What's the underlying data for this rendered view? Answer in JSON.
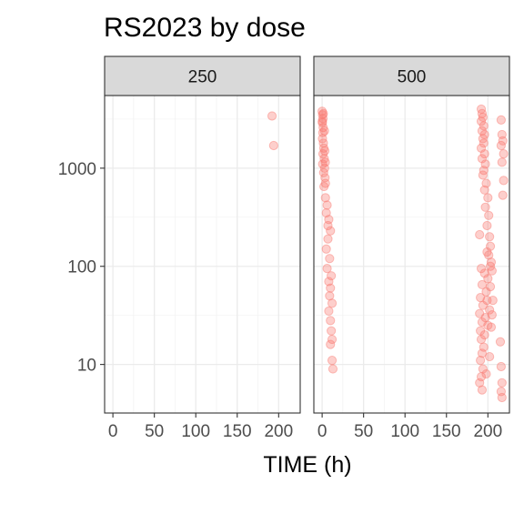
{
  "chart_data": {
    "type": "scatter",
    "title": "RS2023 by dose",
    "xlabel": "TIME (h)",
    "ylabel": "",
    "y_scale": "log10",
    "ylim": [
      3.2,
      5500
    ],
    "xlim": [
      -10,
      226
    ],
    "x_ticks": [
      0,
      50,
      100,
      150,
      200
    ],
    "y_ticks": [
      10,
      100,
      1000
    ],
    "y_tick_labels": [
      "10",
      "100",
      "1000"
    ],
    "grid": true,
    "point_color": "#F8766D",
    "panels": [
      {
        "label": "250",
        "points": [
          {
            "x": 192,
            "y": 3400
          },
          {
            "x": 194,
            "y": 1700
          }
        ]
      },
      {
        "label": "500",
        "points": [
          {
            "x": 0,
            "y": 3800
          },
          {
            "x": 0.5,
            "y": 3500
          },
          {
            "x": 1,
            "y": 3200
          },
          {
            "x": 0.3,
            "y": 2900
          },
          {
            "x": 1.2,
            "y": 2600
          },
          {
            "x": 0.8,
            "y": 2300
          },
          {
            "x": 0.4,
            "y": 2000
          },
          {
            "x": 1.5,
            "y": 1800
          },
          {
            "x": 2,
            "y": 1600
          },
          {
            "x": 1,
            "y": 1400
          },
          {
            "x": 2.5,
            "y": 1250
          },
          {
            "x": 0.6,
            "y": 1100
          },
          {
            "x": 3,
            "y": 1000
          },
          {
            "x": 1.8,
            "y": 900
          },
          {
            "x": 3.5,
            "y": 800
          },
          {
            "x": 4,
            "y": 700
          },
          {
            "x": 2.2,
            "y": 650
          },
          {
            "x": 0.2,
            "y": 3000
          },
          {
            "x": 2.8,
            "y": 2400
          },
          {
            "x": 3.2,
            "y": 1500
          },
          {
            "x": 1.4,
            "y": 3600
          },
          {
            "x": 3.8,
            "y": 1150
          },
          {
            "x": 4,
            "y": 500
          },
          {
            "x": 6,
            "y": 420
          },
          {
            "x": 5,
            "y": 350
          },
          {
            "x": 8,
            "y": 300
          },
          {
            "x": 10,
            "y": 230
          },
          {
            "x": 7,
            "y": 190
          },
          {
            "x": 5,
            "y": 150
          },
          {
            "x": 9,
            "y": 120
          },
          {
            "x": 6,
            "y": 95
          },
          {
            "x": 11,
            "y": 80
          },
          {
            "x": 8,
            "y": 70
          },
          {
            "x": 10,
            "y": 60
          },
          {
            "x": 9,
            "y": 50
          },
          {
            "x": 12,
            "y": 42
          },
          {
            "x": 8,
            "y": 35
          },
          {
            "x": 10,
            "y": 28
          },
          {
            "x": 11,
            "y": 22
          },
          {
            "x": 12,
            "y": 18
          },
          {
            "x": 10,
            "y": 16
          },
          {
            "x": 12,
            "y": 11
          },
          {
            "x": 13,
            "y": 9
          },
          {
            "x": 7,
            "y": 260
          },
          {
            "x": 192,
            "y": 4000
          },
          {
            "x": 193,
            "y": 3600
          },
          {
            "x": 194,
            "y": 3300
          },
          {
            "x": 192,
            "y": 3000
          },
          {
            "x": 195,
            "y": 2700
          },
          {
            "x": 193,
            "y": 2400
          },
          {
            "x": 196,
            "y": 2200
          },
          {
            "x": 194,
            "y": 2000
          },
          {
            "x": 195,
            "y": 1800
          },
          {
            "x": 192,
            "y": 1600
          },
          {
            "x": 196,
            "y": 1400
          },
          {
            "x": 193,
            "y": 1250
          },
          {
            "x": 197,
            "y": 1100
          },
          {
            "x": 195,
            "y": 950
          },
          {
            "x": 194,
            "y": 850
          },
          {
            "x": 198,
            "y": 700
          },
          {
            "x": 196,
            "y": 600
          },
          {
            "x": 200,
            "y": 500
          },
          {
            "x": 197,
            "y": 400
          },
          {
            "x": 201,
            "y": 330
          },
          {
            "x": 199,
            "y": 260
          },
          {
            "x": 202,
            "y": 200
          },
          {
            "x": 190,
            "y": 210
          },
          {
            "x": 203,
            "y": 160
          },
          {
            "x": 201,
            "y": 130
          },
          {
            "x": 204,
            "y": 110
          },
          {
            "x": 192,
            "y": 95
          },
          {
            "x": 196,
            "y": 85
          },
          {
            "x": 200,
            "y": 75
          },
          {
            "x": 205,
            "y": 90
          },
          {
            "x": 193,
            "y": 65
          },
          {
            "x": 198,
            "y": 55
          },
          {
            "x": 203,
            "y": 62
          },
          {
            "x": 191,
            "y": 48
          },
          {
            "x": 199,
            "y": 45
          },
          {
            "x": 194,
            "y": 40
          },
          {
            "x": 202,
            "y": 36
          },
          {
            "x": 190,
            "y": 33
          },
          {
            "x": 197,
            "y": 30
          },
          {
            "x": 205,
            "y": 32
          },
          {
            "x": 193,
            "y": 27
          },
          {
            "x": 200,
            "y": 25
          },
          {
            "x": 191,
            "y": 22
          },
          {
            "x": 196,
            "y": 20
          },
          {
            "x": 192,
            "y": 18
          },
          {
            "x": 195,
            "y": 15
          },
          {
            "x": 193,
            "y": 13
          },
          {
            "x": 191,
            "y": 11
          },
          {
            "x": 194,
            "y": 9
          },
          {
            "x": 192,
            "y": 7.5
          },
          {
            "x": 190,
            "y": 6.5
          },
          {
            "x": 193,
            "y": 5.5
          },
          {
            "x": 198,
            "y": 8
          },
          {
            "x": 202,
            "y": 12
          },
          {
            "x": 204,
            "y": 24
          },
          {
            "x": 206,
            "y": 45
          },
          {
            "x": 203,
            "y": 100
          },
          {
            "x": 199,
            "y": 140
          },
          {
            "x": 216,
            "y": 3100
          },
          {
            "x": 217,
            "y": 2200
          },
          {
            "x": 218,
            "y": 1900
          },
          {
            "x": 216,
            "y": 1700
          },
          {
            "x": 219,
            "y": 1400
          },
          {
            "x": 217,
            "y": 1150
          },
          {
            "x": 219,
            "y": 750
          },
          {
            "x": 218,
            "y": 530
          },
          {
            "x": 215,
            "y": 17
          },
          {
            "x": 216,
            "y": 9.5
          },
          {
            "x": 217,
            "y": 6.5
          },
          {
            "x": 216,
            "y": 5.3
          },
          {
            "x": 217,
            "y": 4.6
          }
        ]
      }
    ]
  }
}
